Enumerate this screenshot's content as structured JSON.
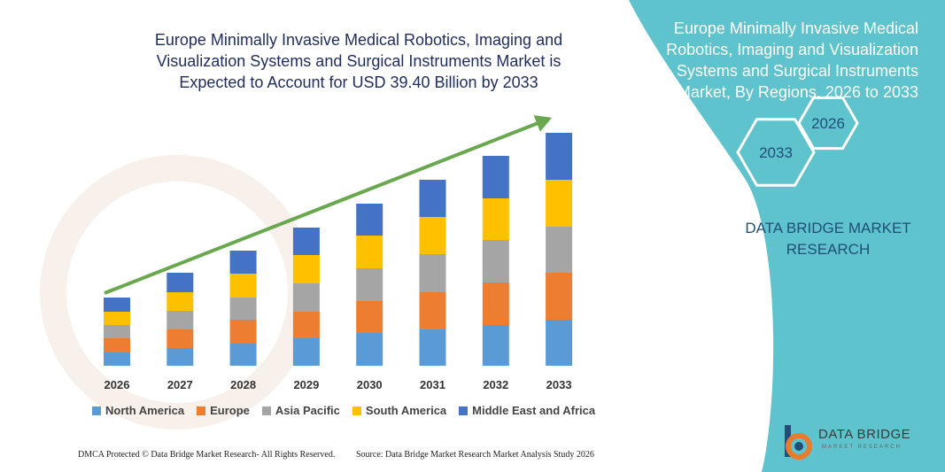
{
  "title": "Europe Minimally Invasive Medical Robotics, Imaging and Visualization Systems and Surgical Instruments Market is Expected to Account for USD 39.40 Billion by 2033",
  "side_panel": {
    "title": "Europe Minimally Invasive Medical Robotics, Imaging and Visualization Systems and Surgical Instruments Market, By Regions, 2026 to 2033",
    "hex_start": "2026",
    "hex_end": "2033",
    "brand": "DATA BRIDGE MARKET RESEARCH",
    "color": "#5ec3cc"
  },
  "footer": {
    "left": "DMCA Protected © Data Bridge Market Research- All Rights Reserved.",
    "right": "Source: Data Bridge Market Research Market Analysis Study 2026"
  },
  "logo": {
    "name": "DATA BRIDGE",
    "tagline": "MARKET RESEARCH"
  },
  "chart_data": {
    "type": "bar",
    "stacked": true,
    "categories": [
      "2026",
      "2027",
      "2028",
      "2029",
      "2030",
      "2031",
      "2032",
      "2033"
    ],
    "series": [
      {
        "name": "North America",
        "color": "#5b9bd5",
        "values": [
          15,
          20,
          25,
          31,
          37,
          41,
          46,
          52
        ]
      },
      {
        "name": "Europe",
        "color": "#ed7d31",
        "values": [
          16,
          21,
          27,
          30,
          36,
          42,
          48,
          53
        ]
      },
      {
        "name": "Asia Pacific",
        "color": "#a5a5a5",
        "values": [
          15,
          21,
          25,
          32,
          37,
          43,
          48,
          52
        ]
      },
      {
        "name": "South America",
        "color": "#ffc000",
        "values": [
          15,
          21,
          27,
          32,
          37,
          42,
          47,
          53
        ]
      },
      {
        "name": "Middle East and Africa",
        "color": "#4472c4",
        "values": [
          16,
          22,
          26,
          31,
          36,
          42,
          48,
          53
        ]
      }
    ],
    "trend_arrow": true,
    "legend_position": "bottom",
    "grid": false
  }
}
